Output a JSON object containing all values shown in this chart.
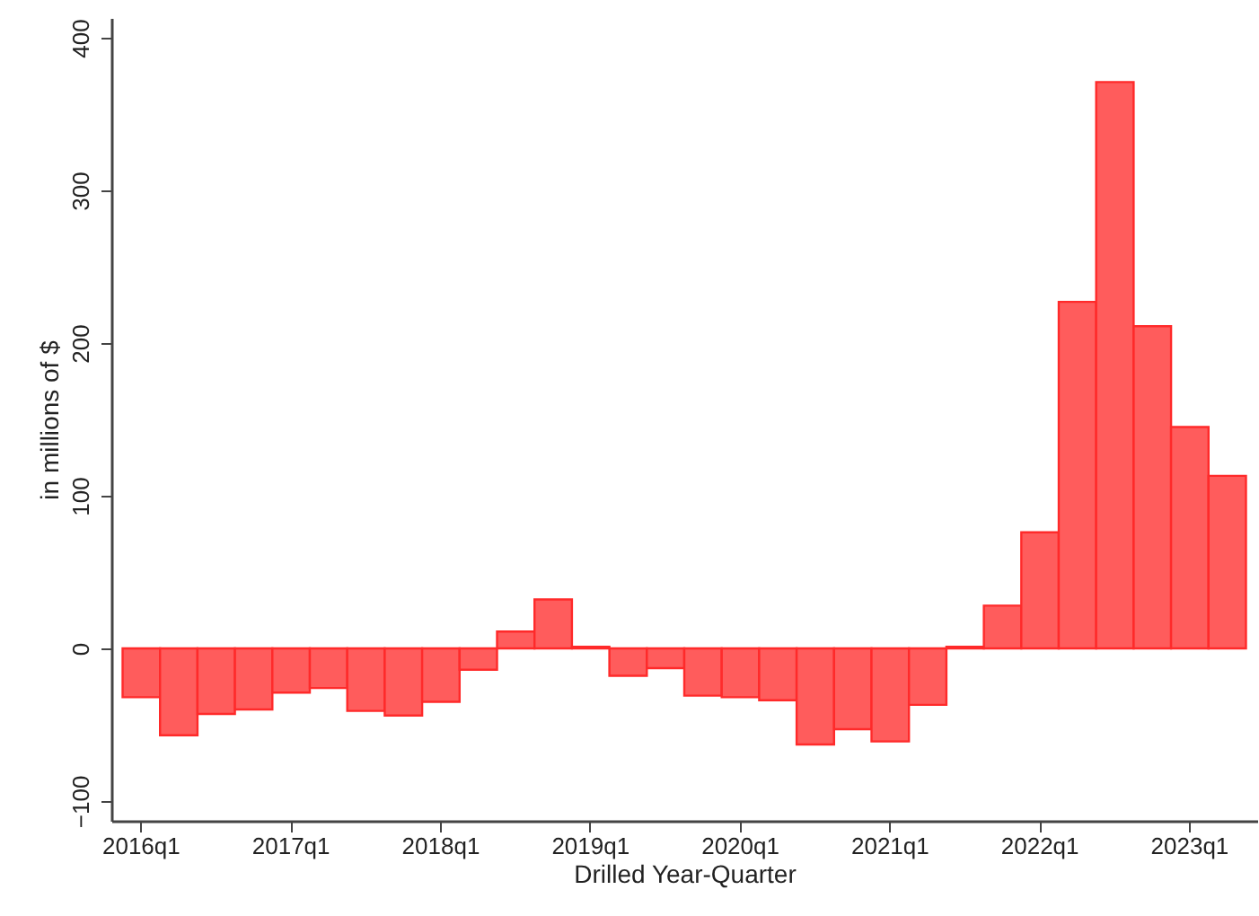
{
  "chart_data": {
    "type": "bar",
    "xlabel": "Drilled Year-Quarter",
    "ylabel": "in millions of $",
    "categories": [
      "2016q1",
      null,
      null,
      null,
      "2017q1",
      null,
      null,
      null,
      "2018q1",
      null,
      null,
      null,
      "2019q1",
      null,
      null,
      null,
      "2020q1",
      null,
      null,
      null,
      "2021q1",
      null,
      null,
      null,
      "2022q1",
      null,
      null,
      null,
      "2023q1",
      null
    ],
    "values": [
      -32,
      -57,
      -43,
      -40,
      -29,
      -26,
      -41,
      -44,
      -35,
      -14,
      11,
      32,
      1,
      -18,
      -13,
      -31,
      -32,
      -34,
      -63,
      -53,
      -61,
      -37,
      1,
      28,
      76,
      227,
      371,
      211,
      145,
      113
    ],
    "color": "#ff5c5c",
    "ylim": [
      -113,
      413
    ],
    "yticks": [
      -100,
      0,
      100,
      200,
      300,
      400
    ],
    "grid": false
  }
}
